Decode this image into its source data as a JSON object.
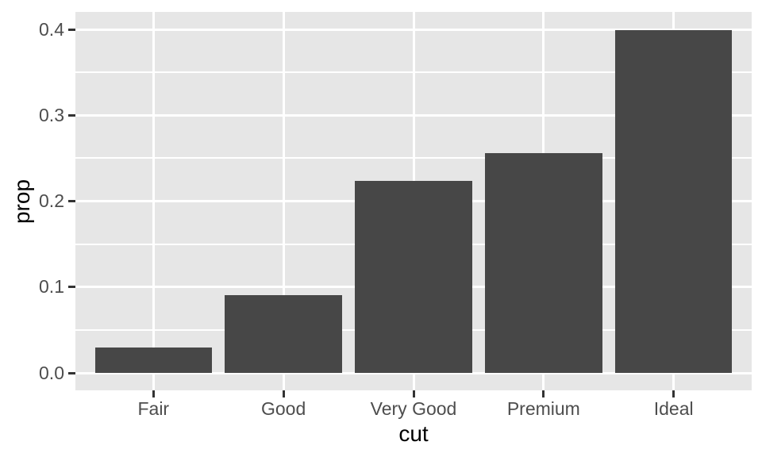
{
  "chart_data": {
    "type": "bar",
    "title": "",
    "xlabel": "cut",
    "ylabel": "prop",
    "categories": [
      "Fair",
      "Good",
      "Very Good",
      "Premium",
      "Ideal"
    ],
    "values": [
      0.03,
      0.091,
      0.224,
      0.256,
      0.399
    ],
    "y_ticks": [
      0.0,
      0.1,
      0.2,
      0.3,
      0.4
    ],
    "y_tick_labels": [
      "0.0",
      "0.1",
      "0.2",
      "0.3",
      "0.4"
    ],
    "y_minor_ticks": [
      0.05,
      0.15,
      0.25,
      0.35
    ],
    "ylim": [
      -0.02,
      0.42
    ],
    "x_expansion": 0.6,
    "bar_width_fraction": 0.9,
    "grid": {
      "major": true,
      "minor": true
    },
    "legend_position": "none",
    "colors": {
      "bar_fill": "#474747",
      "panel_background": "#E6E6E6",
      "plot_background": "#FFFFFF",
      "gridline": "#FFFFFF",
      "tick_mark": "#333333",
      "tick_label": "#4D4D4D",
      "axis_title": "#000000"
    }
  }
}
